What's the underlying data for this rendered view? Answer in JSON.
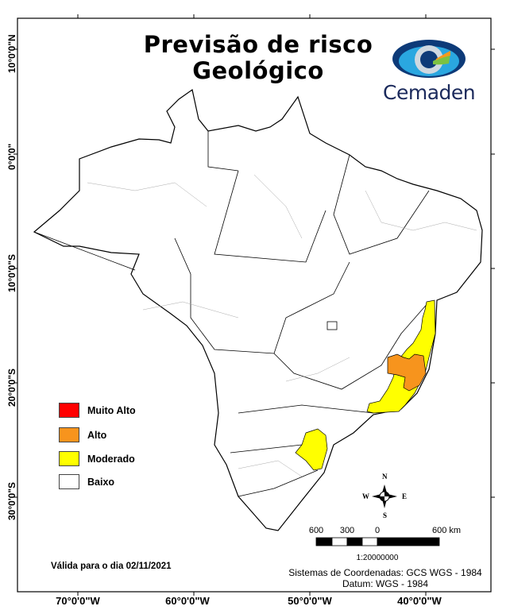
{
  "title": {
    "line1": "Previsão de risco",
    "line2": "Geológico"
  },
  "logo": {
    "text": "Cemaden",
    "colors": [
      "#0d3a78",
      "#2aa7e0",
      "#7cc242",
      "#f39a1e"
    ]
  },
  "axes": {
    "latitude_labels": [
      "10°0'0\"N",
      "0°0'0\"",
      "10°0'0\"S",
      "20°0'0\"S",
      "30°0'0\"S"
    ],
    "longitude_labels": [
      "70°0'0\"W",
      "60°0'0\"W",
      "50°0'0\"W",
      "40°0'0\"W"
    ]
  },
  "legend": {
    "items": [
      {
        "label": "Muito Alto",
        "color": "#ff0000"
      },
      {
        "label": "Alto",
        "color": "#f7941d"
      },
      {
        "label": "Moderado",
        "color": "#ffff00"
      },
      {
        "label": "Baixo",
        "color": "#ffffff"
      }
    ]
  },
  "validity": "Válida para o dia 02/11/2021",
  "north_arrow": {
    "n": "N",
    "s": "S",
    "e": "E",
    "w": "W"
  },
  "scale_bar": {
    "labels": [
      "600",
      "300",
      "0",
      "600 km"
    ],
    "ratio": "1:20000000"
  },
  "coordinate_system": {
    "line1": "Sistemas de Coordenadas: GCS WGS - 1984",
    "line2": "Datum: WGS - 1984"
  }
}
